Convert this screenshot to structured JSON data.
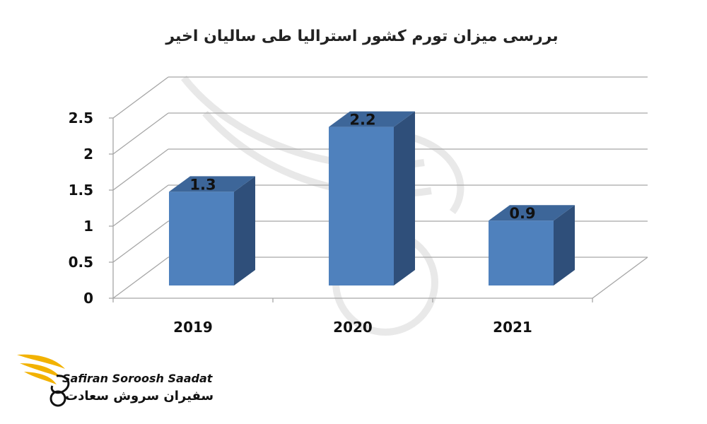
{
  "chart_data": {
    "type": "bar",
    "title": "بررسی میزان تورم کشور استرالیا طی سالیان اخیر",
    "categories": [
      "2019",
      "2020",
      "2021"
    ],
    "values": [
      1.3,
      2.2,
      0.9
    ],
    "data_labels": [
      "1.3",
      "2.2",
      "0.9"
    ],
    "ylim": [
      0,
      2.5
    ],
    "yticks": [
      "0",
      "0.5",
      "1",
      "1.5",
      "2",
      "2.5"
    ],
    "xlabel": "",
    "ylabel": "",
    "grid": true,
    "style": "3d-column",
    "colors": {
      "bar_front": "#4F81BD",
      "bar_side": "#2F4F7A",
      "bar_top": "#3D6699",
      "grid": "#A6A6A6"
    }
  },
  "brand": {
    "name_en": "Safiran Soroosh Saadat",
    "name_fa": "سفیران سروش سعادت",
    "logo_icon": "bird-wing-logo-icon",
    "logo_color": "#F2B200"
  }
}
